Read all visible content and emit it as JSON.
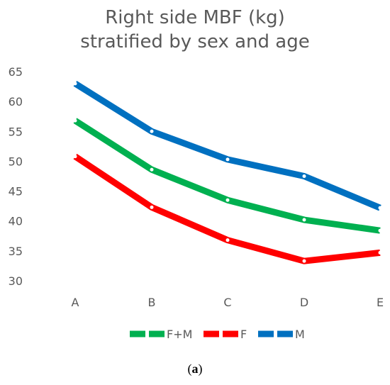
{
  "chart_data": {
    "type": "line",
    "title_lines": [
      "Right side MBF (kg)",
      "stratified by sex and age"
    ],
    "categories": [
      "A",
      "B",
      "C",
      "D",
      "E"
    ],
    "ylim": [
      30,
      65
    ],
    "y_ticks": [
      30,
      35,
      40,
      45,
      50,
      55,
      60,
      65
    ],
    "grid": false,
    "legend_position": "bottom",
    "series": [
      {
        "name": "F+M",
        "color": "#00b050",
        "values": [
          56.8,
          48.6,
          43.5,
          40.2,
          38.4
        ]
      },
      {
        "name": "F",
        "color": "#ff0000",
        "values": [
          50.8,
          42.3,
          36.8,
          33.3,
          34.7
        ]
      },
      {
        "name": "M",
        "color": "#0070c0",
        "values": [
          63.0,
          55.0,
          50.3,
          47.5,
          42.2
        ]
      }
    ]
  },
  "caption": {
    "open": "(",
    "letter": "a",
    "close": ")"
  }
}
